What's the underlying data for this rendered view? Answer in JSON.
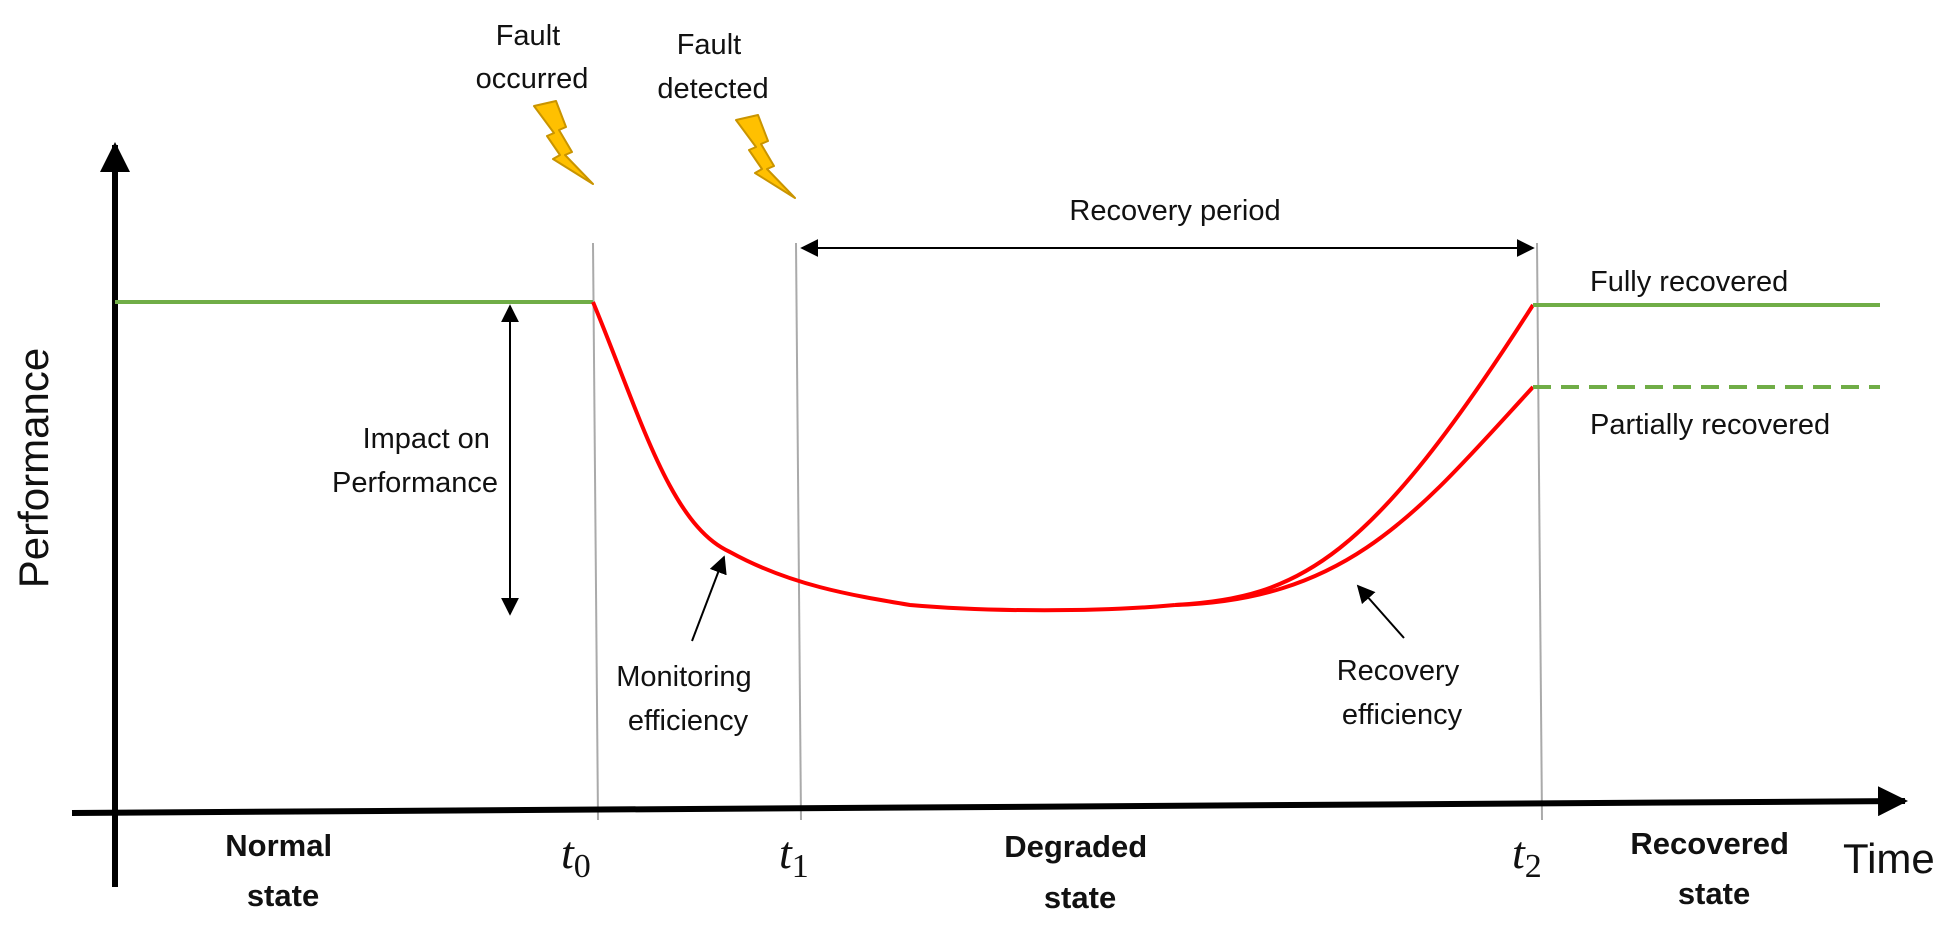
{
  "colors": {
    "baseline": "#70ad47",
    "degradation": "#ff0000",
    "bolt_fill": "#ffc000",
    "bolt_stroke": "#c99400",
    "axis": "#000000",
    "marker": "#aaaaaa"
  },
  "icons": [
    "lightning-bolt-icon"
  ],
  "axes": {
    "y_label": "Performance",
    "x_label": "Time"
  },
  "events": {
    "fault_occurred": [
      "Fault",
      "occurred"
    ],
    "fault_detected": [
      "Fault",
      "detected"
    ]
  },
  "markers": [
    {
      "base": "t",
      "sub": "0"
    },
    {
      "base": "t",
      "sub": "1"
    },
    {
      "base": "t",
      "sub": "2"
    }
  ],
  "annotations": {
    "recovery_period": "Recovery period",
    "impact": [
      "Impact on",
      "Performance"
    ],
    "monitoring": [
      "Monitoring",
      "efficiency"
    ],
    "recovery_eff": [
      "Recovery",
      "efficiency"
    ]
  },
  "outcomes": {
    "full": "Fully recovered",
    "partial": "Partially recovered"
  },
  "states": {
    "normal": [
      "Normal",
      "state"
    ],
    "degraded": [
      "Degraded",
      "state"
    ],
    "recovered": [
      "Recovered",
      "state"
    ]
  }
}
